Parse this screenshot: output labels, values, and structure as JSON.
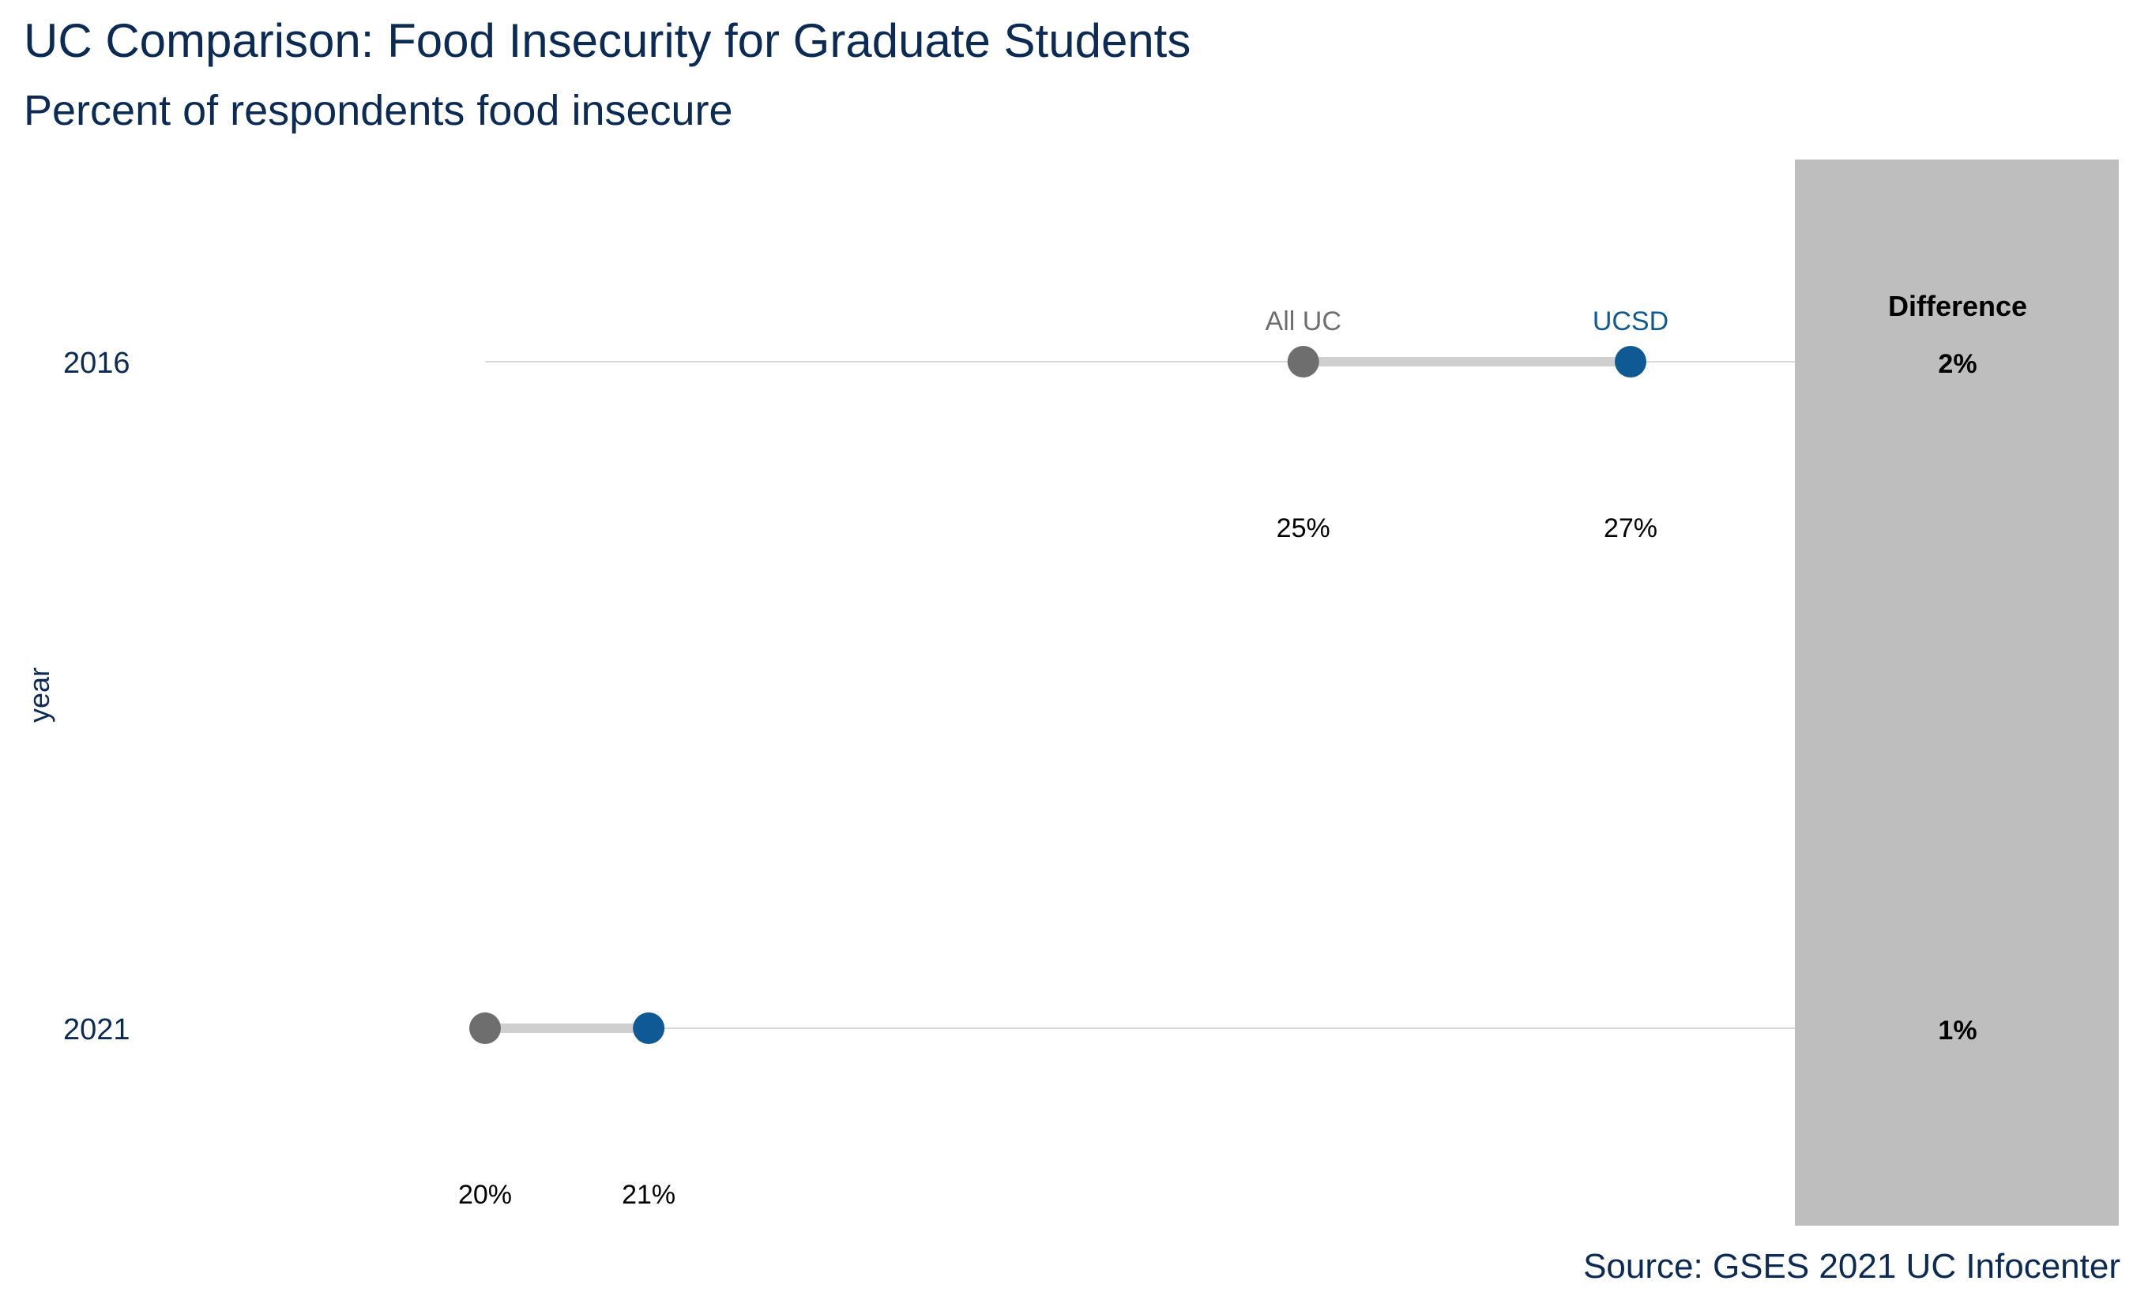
{
  "colors": {
    "title": "#0b2a54",
    "ucsd": "#0f5a94",
    "all_uc": "#6e6e6e",
    "connector": "#cfcfcf",
    "gridline": "#d9d9d9",
    "difference_panel": "#bebebe",
    "value_text": "#000000"
  },
  "chart_data": {
    "type": "dumbbell",
    "title": "UC Comparison: Food Insecurity for Graduate Students",
    "subtitle": "Percent of respondents food insecure",
    "ylabel": "year",
    "xlabel": "",
    "caption": "Source: GSES 2021 UC Infocenter",
    "x_unit": "%",
    "xlim": [
      20,
      27
    ],
    "categories": [
      "2016",
      "2021"
    ],
    "series": [
      {
        "name": "All UC",
        "values": [
          25,
          20
        ],
        "value_labels": [
          "25%",
          "20%"
        ]
      },
      {
        "name": "UCSD",
        "values": [
          27,
          21
        ],
        "value_labels": [
          "27%",
          "21%"
        ]
      }
    ],
    "difference": {
      "header": "Difference",
      "values": [
        "2%",
        "1%"
      ]
    },
    "grid": true,
    "legend": "direct labels on top row"
  }
}
